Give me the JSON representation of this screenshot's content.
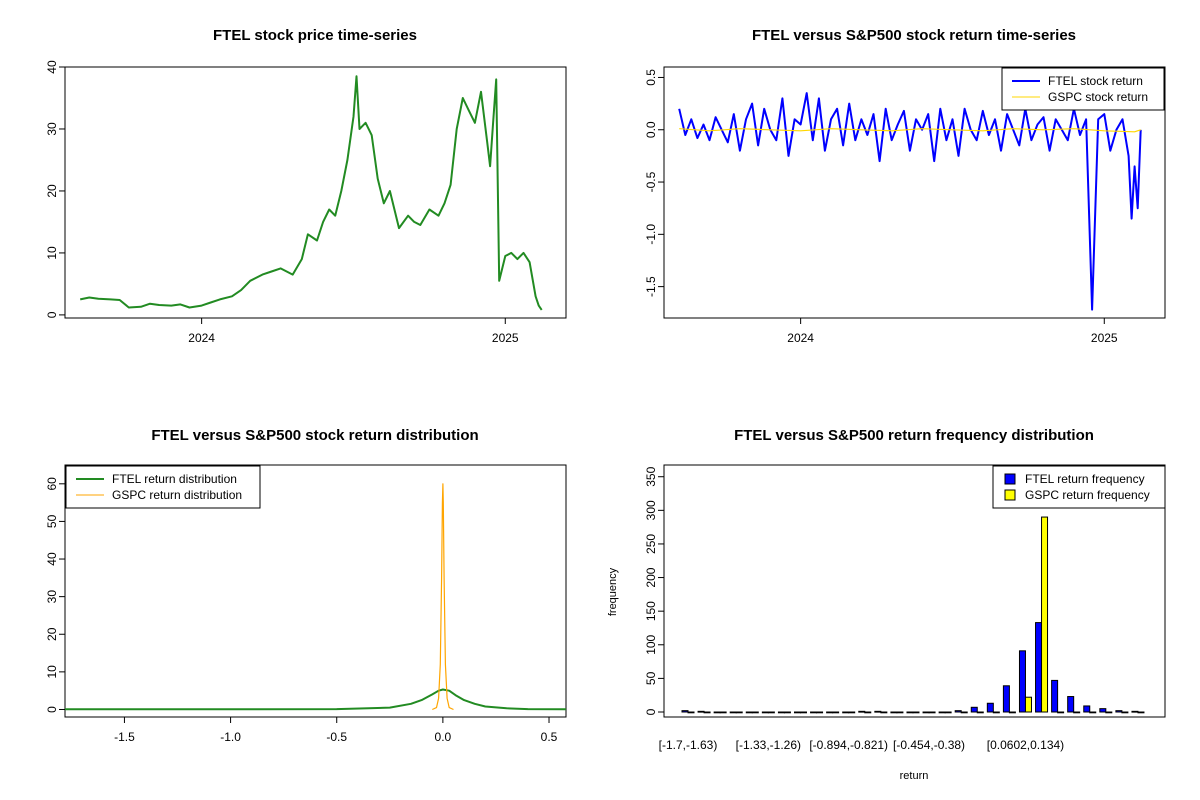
{
  "colors": {
    "ftel_price": "#228B22",
    "ftel_return": "#0000FF",
    "gspc_return": "#FFD700",
    "ftel_density": "#228B22",
    "gspc_density": "#FFA500",
    "ftel_bar": "#0000FF",
    "gspc_bar": "#FFFF00"
  },
  "chart_data": [
    {
      "id": "price",
      "type": "line",
      "title": "FTEL stock price time-series",
      "xlabel": "",
      "ylabel": "",
      "xlim": [
        2023.55,
        2025.2
      ],
      "ylim": [
        -0.5,
        40
      ],
      "x_ticks": [
        {
          "v": 2024.0,
          "label": "2024"
        },
        {
          "v": 2025.0,
          "label": "2025"
        }
      ],
      "y_ticks": [
        0,
        10,
        20,
        30,
        40
      ],
      "series": [
        {
          "name": "FTEL stock price",
          "x": [
            2023.6,
            2023.63,
            2023.66,
            2023.7,
            2023.73,
            2023.76,
            2023.8,
            2023.83,
            2023.86,
            2023.9,
            2023.93,
            2023.96,
            2024.0,
            2024.03,
            2024.06,
            2024.1,
            2024.13,
            2024.16,
            2024.2,
            2024.23,
            2024.26,
            2024.3,
            2024.33,
            2024.35,
            2024.38,
            2024.4,
            2024.42,
            2024.44,
            2024.46,
            2024.48,
            2024.5,
            2024.51,
            2024.52,
            2024.54,
            2024.56,
            2024.58,
            2024.6,
            2024.62,
            2024.65,
            2024.68,
            2024.7,
            2024.72,
            2024.75,
            2024.78,
            2024.8,
            2024.82,
            2024.84,
            2024.86,
            2024.88,
            2024.9,
            2024.92,
            2024.94,
            2024.95,
            2024.96,
            2024.97,
            2024.98,
            2025.0,
            2025.02,
            2025.04,
            2025.06,
            2025.08,
            2025.1,
            2025.11,
            2025.12
          ],
          "y": [
            2.5,
            2.8,
            2.6,
            2.5,
            2.4,
            1.2,
            1.3,
            1.8,
            1.6,
            1.5,
            1.7,
            1.2,
            1.5,
            2.0,
            2.5,
            3.0,
            4.0,
            5.5,
            6.5,
            7.0,
            7.5,
            6.5,
            9.0,
            13.0,
            12.0,
            15.0,
            17.0,
            16.0,
            20.0,
            25.0,
            32.0,
            38.5,
            30.0,
            31.0,
            29.0,
            22.0,
            18.0,
            20.0,
            14.0,
            16.0,
            15.0,
            14.5,
            17.0,
            16.0,
            18.0,
            21.0,
            30.0,
            35.0,
            33.0,
            31.0,
            36.0,
            28.0,
            24.0,
            31.0,
            38.0,
            5.5,
            9.5,
            10.0,
            9.0,
            10.0,
            8.5,
            3.0,
            1.5,
            0.8
          ]
        }
      ]
    },
    {
      "id": "returns",
      "type": "line",
      "title": "FTEL versus S&P500 stock return time-series",
      "xlabel": "",
      "ylabel": "",
      "xlim": [
        2023.55,
        2025.2
      ],
      "ylim": [
        -1.8,
        0.6
      ],
      "x_ticks": [
        {
          "v": 2024.0,
          "label": "2024"
        },
        {
          "v": 2025.0,
          "label": "2025"
        }
      ],
      "y_ticks": [
        {
          "v": 0.5,
          "label": "0.5"
        },
        {
          "v": 0.0,
          "label": "0.0"
        },
        {
          "v": -0.5,
          "label": "-0.5"
        },
        {
          "v": -1.0,
          "label": "-1.0"
        },
        {
          "v": -1.5,
          "label": "-1.5"
        }
      ],
      "legend": {
        "position": "top-right",
        "items": [
          "FTEL stock return",
          "GSPC stock return"
        ]
      },
      "series": [
        {
          "name": "FTEL stock return",
          "x": [
            2023.6,
            2023.62,
            2023.64,
            2023.66,
            2023.68,
            2023.7,
            2023.72,
            2023.74,
            2023.76,
            2023.78,
            2023.8,
            2023.82,
            2023.84,
            2023.86,
            2023.88,
            2023.9,
            2023.92,
            2023.94,
            2023.96,
            2023.98,
            2024.0,
            2024.02,
            2024.04,
            2024.06,
            2024.08,
            2024.1,
            2024.12,
            2024.14,
            2024.16,
            2024.18,
            2024.2,
            2024.22,
            2024.24,
            2024.26,
            2024.28,
            2024.3,
            2024.32,
            2024.34,
            2024.36,
            2024.38,
            2024.4,
            2024.42,
            2024.44,
            2024.46,
            2024.48,
            2024.5,
            2024.52,
            2024.54,
            2024.56,
            2024.58,
            2024.6,
            2024.62,
            2024.64,
            2024.66,
            2024.68,
            2024.7,
            2024.72,
            2024.74,
            2024.76,
            2024.78,
            2024.8,
            2024.82,
            2024.84,
            2024.86,
            2024.88,
            2024.9,
            2024.92,
            2024.94,
            2024.96,
            2024.98,
            2025.0,
            2025.02,
            2025.04,
            2025.06,
            2025.08,
            2025.09,
            2025.1,
            2025.11,
            2025.12
          ],
          "y": [
            0.2,
            -0.05,
            0.1,
            -0.08,
            0.05,
            -0.1,
            0.12,
            0.0,
            -0.12,
            0.15,
            -0.2,
            0.1,
            0.25,
            -0.15,
            0.2,
            0.0,
            -0.1,
            0.3,
            -0.25,
            0.1,
            0.05,
            0.35,
            -0.1,
            0.3,
            -0.2,
            0.1,
            0.2,
            -0.15,
            0.25,
            -0.1,
            0.1,
            -0.05,
            0.15,
            -0.3,
            0.2,
            -0.1,
            0.05,
            0.18,
            -0.2,
            0.1,
            0.0,
            0.15,
            -0.3,
            0.2,
            -0.1,
            0.1,
            -0.25,
            0.2,
            0.0,
            -0.1,
            0.18,
            -0.05,
            0.1,
            -0.2,
            0.15,
            0.0,
            -0.15,
            0.2,
            -0.1,
            0.05,
            0.12,
            -0.2,
            0.1,
            0.0,
            -0.1,
            0.2,
            -0.05,
            0.1,
            -1.72,
            0.1,
            0.15,
            -0.2,
            0.0,
            0.1,
            -0.25,
            -0.85,
            -0.35,
            -0.75,
            0.0
          ]
        },
        {
          "name": "GSPC stock return",
          "x": [
            2023.6,
            2023.7,
            2023.8,
            2023.9,
            2024.0,
            2024.1,
            2024.2,
            2024.3,
            2024.4,
            2024.5,
            2024.6,
            2024.7,
            2024.8,
            2024.9,
            2025.0,
            2025.1,
            2025.12
          ],
          "y": [
            0.01,
            -0.01,
            0.01,
            0.0,
            -0.01,
            0.01,
            0.0,
            -0.01,
            0.01,
            0.0,
            -0.01,
            0.01,
            0.0,
            0.01,
            -0.01,
            -0.02,
            0.0
          ]
        }
      ]
    },
    {
      "id": "density",
      "type": "line",
      "title": "FTEL versus S&P500 stock return distribution",
      "xlabel": "",
      "ylabel": "",
      "xlim": [
        -1.78,
        0.58
      ],
      "ylim": [
        -2,
        65
      ],
      "x_ticks": [
        {
          "v": -1.5,
          "label": "-1.5"
        },
        {
          "v": -1.0,
          "label": "-1.0"
        },
        {
          "v": -0.5,
          "label": "-0.5"
        },
        {
          "v": 0.0,
          "label": "0.0"
        },
        {
          "v": 0.5,
          "label": "0.5"
        }
      ],
      "y_ticks": [
        0,
        10,
        20,
        30,
        40,
        50,
        60
      ],
      "legend": {
        "position": "top-left",
        "items": [
          "FTEL return distribution",
          "GSPC return distribution"
        ]
      },
      "series": [
        {
          "name": "FTEL return distribution",
          "x": [
            -1.78,
            -1.0,
            -0.5,
            -0.35,
            -0.25,
            -0.15,
            -0.1,
            -0.05,
            -0.02,
            0.0,
            0.03,
            0.06,
            0.1,
            0.15,
            0.2,
            0.3,
            0.4,
            0.58
          ],
          "y": [
            0.05,
            0.05,
            0.1,
            0.3,
            0.5,
            1.5,
            2.5,
            4.0,
            5.0,
            5.3,
            5.0,
            3.8,
            2.5,
            1.5,
            0.8,
            0.3,
            0.1,
            0.05
          ]
        },
        {
          "name": "GSPC return distribution",
          "x": [
            -0.05,
            -0.03,
            -0.02,
            -0.012,
            -0.006,
            -0.002,
            0.0,
            0.002,
            0.006,
            0.012,
            0.02,
            0.03,
            0.05
          ],
          "y": [
            0,
            0.5,
            3,
            12,
            35,
            55,
            60,
            55,
            35,
            12,
            3,
            0.5,
            0
          ]
        }
      ]
    },
    {
      "id": "freq",
      "type": "bar",
      "title": "FTEL versus S&P500 return frequency distribution",
      "xlabel": "return",
      "ylabel": "frequency",
      "ylim": [
        0,
        360
      ],
      "y_ticks": [
        0,
        50,
        100,
        150,
        200,
        250,
        300,
        350
      ],
      "x_tick_labels": [
        {
          "i": 0,
          "label": "[-1.7,-1.63)"
        },
        {
          "i": 5,
          "label": "[-1.33,-1.26)"
        },
        {
          "i": 10,
          "label": "[-0.894,-0.821)"
        },
        {
          "i": 15,
          "label": "[-0.454,-0.38)"
        },
        {
          "i": 21,
          "label": "[0.0602,0.134)"
        }
      ],
      "legend": {
        "position": "top-right",
        "items": [
          "FTEL return frequency",
          "GSPC return frequency"
        ]
      },
      "series": [
        {
          "name": "FTEL return frequency",
          "values": [
            2,
            1,
            0,
            0,
            0,
            0,
            0,
            0,
            0,
            0,
            0,
            1,
            1,
            0,
            0,
            0,
            0,
            2,
            7,
            13,
            39,
            91,
            133,
            47,
            23,
            9,
            5,
            2,
            1
          ]
        },
        {
          "name": "GSPC return frequency",
          "values": [
            0,
            0,
            0,
            0,
            0,
            0,
            0,
            0,
            0,
            0,
            0,
            0,
            0,
            0,
            0,
            0,
            0,
            0,
            0,
            0,
            0,
            22,
            290,
            0,
            0,
            0,
            0,
            0,
            0
          ]
        }
      ]
    }
  ]
}
